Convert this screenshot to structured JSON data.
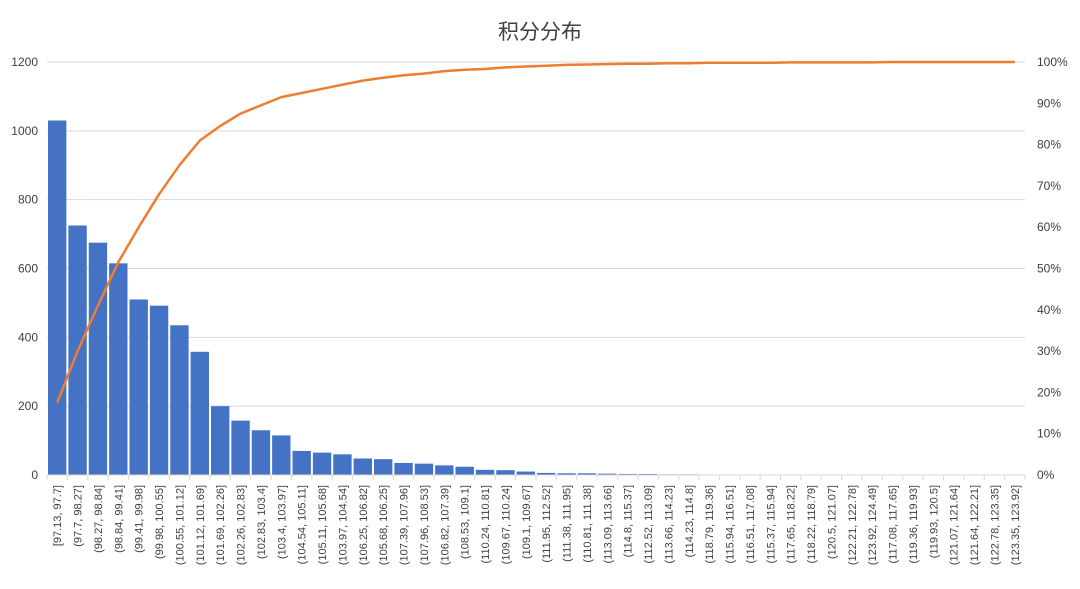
{
  "chart_data": {
    "type": "bar",
    "title": "积分分布",
    "xlabel": "",
    "ylabel": "",
    "ylim": [
      0,
      1200
    ],
    "y2lim": [
      0,
      1
    ],
    "yticks": [
      "0",
      "200",
      "400",
      "600",
      "800",
      "1000",
      "1200"
    ],
    "y2ticks": [
      "0%",
      "10%",
      "20%",
      "30%",
      "40%",
      "50%",
      "60%",
      "70%",
      "80%",
      "90%",
      "100%"
    ],
    "grid": true,
    "legend": "none",
    "colors": {
      "bar": "#4472C4",
      "line": "#ED7D31",
      "grid": "#D9D9D9"
    },
    "categories": [
      "[97.13, 97.7]",
      "(97.7, 98.27]",
      "(98.27, 98.84]",
      "(98.84, 99.41]",
      "(99.41, 99.98]",
      "(99.98, 100.55]",
      "(100.55, 101.12]",
      "(101.12, 101.69]",
      "(101.69, 102.26]",
      "(102.26, 102.83]",
      "(102.83, 103.4]",
      "(103.4, 103.97]",
      "(104.54, 105.11]",
      "(105.11, 105.68]",
      "(103.97, 104.54]",
      "(106.25, 106.82]",
      "(105.68, 106.25]",
      "(107.39, 107.96]",
      "(107.96, 108.53]",
      "(106.82, 107.39]",
      "(108.53, 109.1]",
      "(110.24, 110.81]",
      "(109.67, 110.24]",
      "(109.1, 109.67]",
      "(111.95, 112.52]",
      "(111.38, 111.95]",
      "(110.81, 111.38]",
      "(113.09, 113.66]",
      "(114.8, 115.37]",
      "(112.52, 113.09]",
      "(113.66, 114.23]",
      "(114.23, 114.8]",
      "(118.79, 119.36]",
      "(115.94, 116.51]",
      "(116.51, 117.08]",
      "(115.37, 115.94]",
      "(117.65, 118.22]",
      "(118.22, 118.79]",
      "(120.5, 121.07]",
      "(122.21, 122.78]",
      "(123.92, 124.49]",
      "(117.08, 117.65]",
      "(119.36, 119.93]",
      "(119.93, 120.5]",
      "(121.07, 121.64]",
      "(121.64, 122.21]",
      "(122.78, 123.35]",
      "(123.35, 123.92]"
    ],
    "series": [
      {
        "type": "bar",
        "values": [
          1030,
          725,
          675,
          615,
          510,
          492,
          435,
          358,
          200,
          158,
          130,
          115,
          70,
          65,
          60,
          48,
          46,
          35,
          33,
          28,
          24,
          15,
          14,
          10,
          6,
          5,
          5,
          4,
          3,
          3,
          2,
          2,
          1,
          1,
          1,
          1,
          1,
          1,
          1,
          1,
          1,
          1,
          0,
          0,
          0,
          0,
          0,
          0
        ]
      },
      {
        "type": "line",
        "axis": "secondary",
        "values": [
          0.175,
          0.3,
          0.41,
          0.515,
          0.6,
          0.68,
          0.75,
          0.81,
          0.845,
          0.875,
          0.895,
          0.915,
          0.925,
          0.935,
          0.945,
          0.955,
          0.962,
          0.968,
          0.972,
          0.978,
          0.981,
          0.983,
          0.987,
          0.989,
          0.991,
          0.993,
          0.994,
          0.995,
          0.996,
          0.996,
          0.997,
          0.997,
          0.998,
          0.998,
          0.998,
          0.998,
          0.999,
          0.999,
          0.999,
          0.999,
          0.999,
          1.0,
          1.0,
          1.0,
          1.0,
          1.0,
          1.0,
          1.0
        ]
      }
    ]
  }
}
